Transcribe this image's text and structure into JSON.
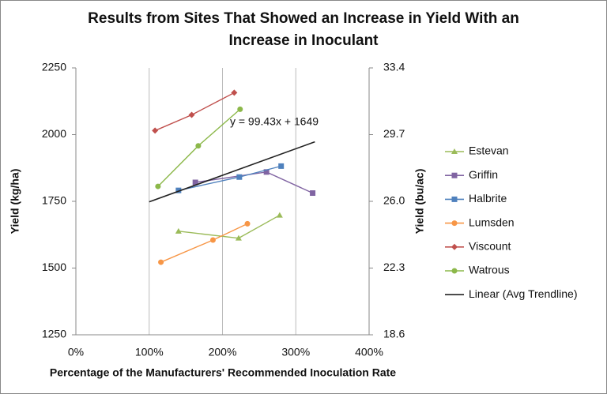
{
  "chart_data": {
    "type": "line",
    "title": "Results from Sites That Showed an Increase in Yield With an Increase in Inoculant",
    "x_label": "Percentage of the Manufacturers' Recommended Inoculation Rate",
    "y_label": "Yield (kg/ha)",
    "y2_label": "Yield (bu/ac)",
    "annotation": "y = 99.43x + 1649",
    "xlim": [
      0,
      400
    ],
    "xticks": [
      {
        "value": 0,
        "label": "0%"
      },
      {
        "value": 100,
        "label": "100%"
      },
      {
        "value": 200,
        "label": "200%"
      },
      {
        "value": 300,
        "label": "300%"
      },
      {
        "value": 400,
        "label": "400%"
      }
    ],
    "ylim": [
      1250,
      2250
    ],
    "yticks": [
      1250,
      1500,
      1750,
      2000,
      2250
    ],
    "y2lim": [
      18.6,
      33.4
    ],
    "y2ticks": [
      18.6,
      22.3,
      {
        "value": 26,
        "label": "26.0"
      },
      29.7,
      33.4
    ],
    "grid": true,
    "legend": "right",
    "series": [
      {
        "name": "Estevan",
        "color": "#9bbb59",
        "marker": "triangle",
        "x": [
          140,
          222,
          278
        ],
        "values": [
          1638,
          1612,
          1698
        ]
      },
      {
        "name": "Griffin",
        "color": "#8064a2",
        "marker": "square",
        "x": [
          163,
          260,
          323
        ],
        "values": [
          1821,
          1860,
          1781
        ]
      },
      {
        "name": "Halbrite",
        "color": "#4f81bd",
        "marker": "square",
        "x": [
          140,
          223,
          280
        ],
        "values": [
          1791,
          1841,
          1882
        ]
      },
      {
        "name": "Lumsden",
        "color": "#f79646",
        "marker": "circle",
        "x": [
          116,
          187,
          234
        ],
        "values": [
          1522,
          1605,
          1666
        ]
      },
      {
        "name": "Viscount",
        "color": "#c0504d",
        "marker": "diamond",
        "x": [
          108,
          158,
          216
        ],
        "values": [
          2015,
          2074,
          2157
        ]
      },
      {
        "name": "Watrous",
        "color": "#8cb84a",
        "marker": "circle",
        "x": [
          112,
          167,
          224
        ],
        "values": [
          1806,
          1958,
          2095
        ]
      },
      {
        "name": "Linear (Avg Trendline)",
        "color": "#222222",
        "marker": "none",
        "x": [
          100,
          326
        ],
        "values": [
          1748,
          1973
        ]
      }
    ]
  }
}
